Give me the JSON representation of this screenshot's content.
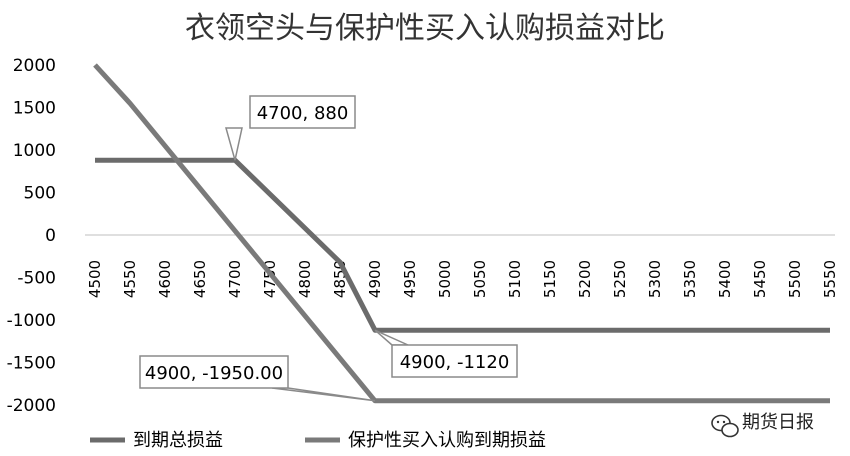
{
  "chart_data": {
    "type": "line",
    "title": "衣领空头与保护性买入认购损益对比",
    "xlabel": "",
    "ylabel": "",
    "x": [
      4500,
      4550,
      4600,
      4650,
      4700,
      4750,
      4800,
      4850,
      4900,
      4950,
      5000,
      5050,
      5100,
      5150,
      5200,
      5250,
      5300,
      5350,
      5400,
      5450,
      5500,
      5550
    ],
    "ylim": [
      -2000,
      2000
    ],
    "yticks": [
      2000,
      1500,
      1000,
      500,
      0,
      -500,
      -1000,
      -1500,
      -2000
    ],
    "grid": false,
    "legend": "bottom-left",
    "series": [
      {
        "name": "到期总损益",
        "color": "#6b6b6b",
        "values": [
          880,
          880,
          880,
          880,
          880,
          480,
          80,
          -320,
          -1120,
          -1120,
          -1120,
          -1120,
          -1120,
          -1120,
          -1120,
          -1120,
          -1120,
          -1120,
          -1120,
          -1120,
          -1120,
          -1120
        ]
      },
      {
        "name": "保护性买入认购到期损益",
        "color": "#7a7a7a",
        "values": [
          2000,
          1550,
          1050,
          550,
          50,
          -450,
          -950,
          -1450,
          -1950,
          -1950,
          -1950,
          -1950,
          -1950,
          -1950,
          -1950,
          -1950,
          -1950,
          -1950,
          -1950,
          -1950,
          -1950,
          -1950
        ]
      }
    ],
    "annotations": [
      {
        "text": "4700, 880",
        "x": 4700,
        "y": 880
      },
      {
        "text": "4900, -1120",
        "x": 4900,
        "y": -1120
      },
      {
        "text": "4900, -1950.00",
        "x": 4900,
        "y": -1950
      }
    ]
  },
  "watermark": {
    "text": "期货日报",
    "icon": "wechat-icon"
  }
}
